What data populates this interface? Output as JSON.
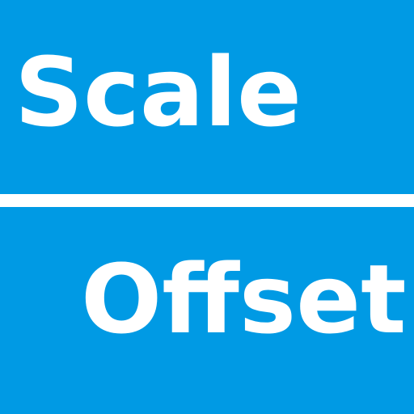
{
  "top_panel": {
    "label": "Scale"
  },
  "bottom_panel": {
    "label": "Offset"
  },
  "colors": {
    "panel": "#009AE4",
    "text": "#FFFFFF",
    "divider": "#FFFFFF"
  }
}
